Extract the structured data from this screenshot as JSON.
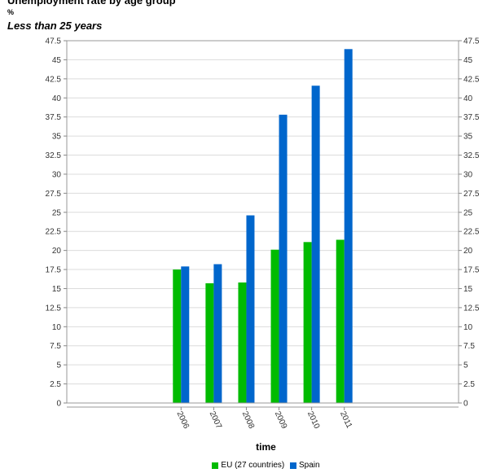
{
  "chart_data": {
    "type": "bar",
    "title": "Unemployment rate by age group",
    "unit": "%",
    "subtitle": "Less than 25 years",
    "xlabel": "time",
    "categories": [
      "2006",
      "2007",
      "2008",
      "2009",
      "2010",
      "2011"
    ],
    "series": [
      {
        "name": "EU (27 countries)",
        "color": "#00bb00",
        "values": [
          17.5,
          15.7,
          15.8,
          20.1,
          21.1,
          21.4
        ]
      },
      {
        "name": "Spain",
        "color": "#0066cc",
        "values": [
          17.9,
          18.2,
          24.6,
          37.8,
          41.6,
          46.4
        ]
      }
    ],
    "ylim": [
      0,
      47.5
    ],
    "yticks": [
      "0",
      "2.5",
      "5",
      "7.5",
      "10",
      "12.5",
      "15",
      "17.5",
      "20",
      "22.5",
      "25",
      "27.5",
      "30",
      "32.5",
      "35",
      "37.5",
      "40",
      "42.5",
      "45",
      "47.5"
    ],
    "grid": true,
    "legend_position": "bottom-center"
  }
}
